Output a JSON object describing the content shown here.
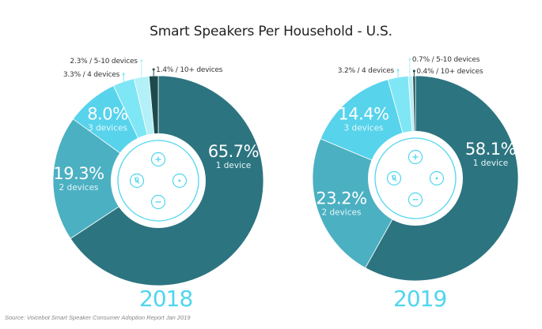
{
  "chart_data": {
    "type": "pie",
    "title": "Smart Speakers Per Household - U.S.",
    "source": "Source: Voicebot Smart Speaker Consumer Adoption Report Jan 2019",
    "categories": [
      "1 device",
      "2 devices",
      "3 devices",
      "4 devices",
      "5-10 devices",
      "10+ devices"
    ],
    "colors": {
      "1 device": "#2c7480",
      "2 devices": "#4bb0c2",
      "3 devices": "#57d3ec",
      "4 devices": "#7fe6f5",
      "5-10 devices": "#b3f0f8",
      "10+ devices": "#1c4b4e"
    },
    "center_icon": "smart-speaker-top-icon",
    "charts": [
      {
        "label": "2018",
        "slices": [
          {
            "category": "1 device",
            "value": 65.7,
            "pct_label": "65.7%",
            "sub_label": "1 device",
            "style": "inside"
          },
          {
            "category": "2 devices",
            "value": 19.3,
            "pct_label": "19.3%",
            "sub_label": "2 devices",
            "style": "inside"
          },
          {
            "category": "3 devices",
            "value": 8.0,
            "pct_label": "8.0%",
            "sub_label": "3 devices",
            "style": "inside"
          },
          {
            "category": "4 devices",
            "value": 3.3,
            "callout": "3.3% / 4 devices",
            "style": "callout-left"
          },
          {
            "category": "5-10 devices",
            "value": 2.3,
            "callout": "2.3% / 5-10 devices",
            "style": "callout-left-high"
          },
          {
            "category": "10+ devices",
            "value": 1.4,
            "callout": "1.4% / 10+ devices",
            "style": "callout-right"
          }
        ]
      },
      {
        "label": "2019",
        "slices": [
          {
            "category": "1 device",
            "value": 58.1,
            "pct_label": "58.1%",
            "sub_label": "1 device",
            "style": "inside"
          },
          {
            "category": "2 devices",
            "value": 23.2,
            "pct_label": "23.2%",
            "sub_label": "2 devices",
            "style": "inside"
          },
          {
            "category": "3 devices",
            "value": 14.4,
            "pct_label": "14.4%",
            "sub_label": "3 devices",
            "style": "inside"
          },
          {
            "category": "4 devices",
            "value": 3.2,
            "callout": "3.2% / 4 devices",
            "style": "callout-left"
          },
          {
            "category": "5-10 devices",
            "value": 0.7,
            "callout": "0.7% / 5-10 devices",
            "style": "callout-right-high"
          },
          {
            "category": "10+ devices",
            "value": 0.4,
            "callout": "0.4% / 10+ devices",
            "style": "callout-right"
          }
        ]
      }
    ]
  }
}
